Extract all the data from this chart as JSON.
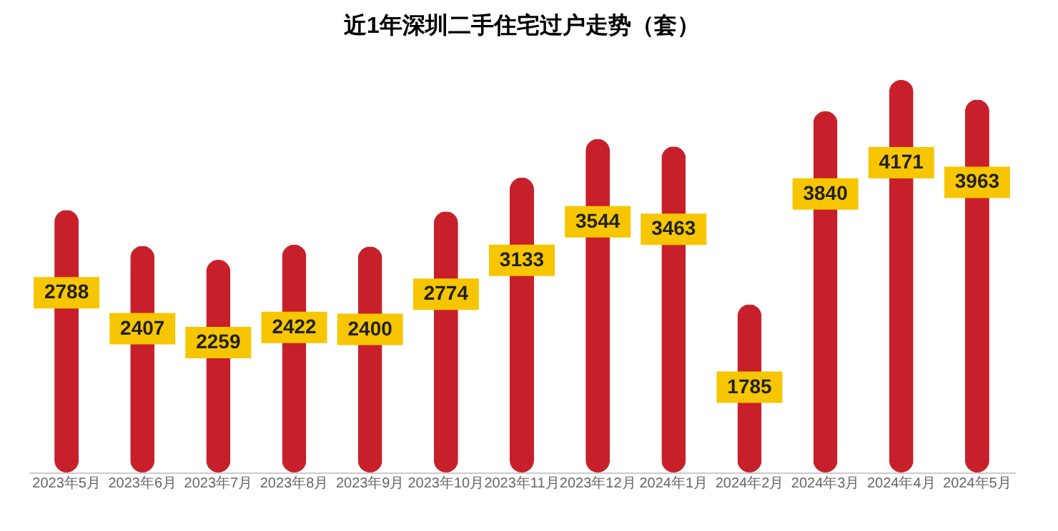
{
  "chart_data": {
    "type": "bar",
    "title": "近1年深圳二手住宅过户走势（套）",
    "categories": [
      "2023年5月",
      "2023年6月",
      "2023年7月",
      "2023年8月",
      "2023年9月",
      "2023年10月",
      "2023年11月",
      "2023年12月",
      "2024年1月",
      "2024年2月",
      "2024年3月",
      "2024年4月",
      "2024年5月"
    ],
    "values": [
      2788,
      2407,
      2259,
      2422,
      2400,
      2774,
      3133,
      3544,
      3463,
      1785,
      3840,
      4171,
      3963
    ],
    "color": "#c8202a",
    "data_labels": true
  }
}
